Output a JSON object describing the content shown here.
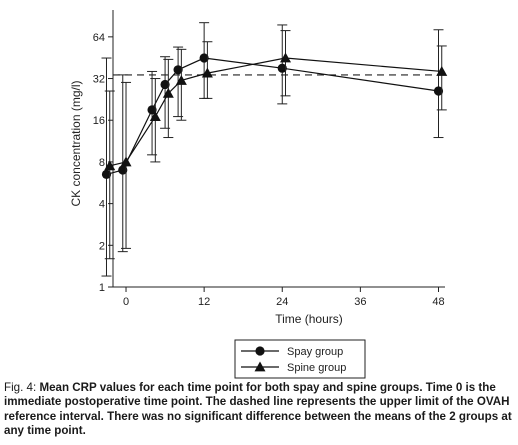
{
  "chart_data": {
    "type": "line",
    "ylabel": "CK concentration (mg/l)",
    "xlabel": "Time (hours)",
    "y_scale": "log2",
    "ylim": [
      1,
      100
    ],
    "xlim": [
      -2,
      49
    ],
    "x_ticks": [
      0,
      12,
      24,
      36,
      48
    ],
    "y_ticks": [
      1,
      2,
      4,
      8,
      16,
      32,
      64
    ],
    "reference_line": {
      "y": 34,
      "style": "dashed"
    },
    "legend_position": "bottom-center",
    "series": [
      {
        "name": "Spay group",
        "marker": "circle",
        "x": [
          -3,
          -0.5,
          4,
          6,
          8,
          12,
          24,
          48
        ],
        "y": [
          6.5,
          7,
          19,
          29,
          37,
          45,
          38,
          26
        ],
        "err_low": [
          1.2,
          1.8,
          9,
          14,
          17,
          23,
          21,
          12
        ],
        "err_high": [
          45,
          34,
          36,
          46,
          54,
          81,
          78,
          72
        ]
      },
      {
        "name": "Spine group",
        "marker": "triangle",
        "x": [
          -2.5,
          0,
          4.5,
          6.5,
          8.5,
          12.5,
          24.5,
          48.5
        ],
        "y": [
          7.5,
          8,
          17,
          25,
          31,
          35,
          45,
          36
        ],
        "err_low": [
          1.6,
          1.9,
          8,
          12,
          16,
          23,
          24,
          19
        ],
        "err_high": [
          26,
          30,
          32,
          44,
          52,
          59,
          71,
          55
        ]
      }
    ]
  },
  "caption": {
    "label": "Fig. 4: ",
    "text": "Mean CRP values for each time point for both spay and spine groups. Time 0 is the immediate postoperative time point. The dashed line represents the upper limit of the OVAH reference interval. There was no significant difference between the means of the 2 groups at any time point."
  }
}
